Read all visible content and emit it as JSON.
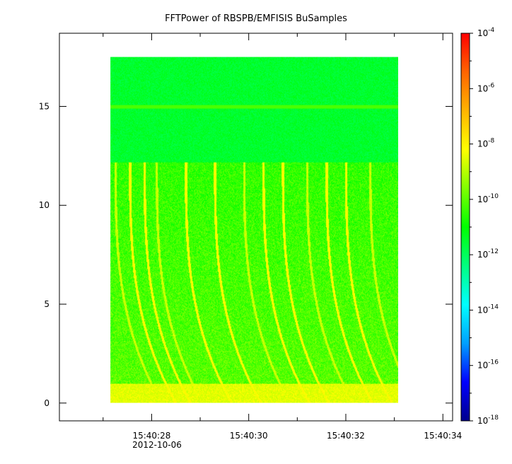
{
  "chart_data": {
    "type": "heatmap",
    "title": "FFTPower of RBSPB/EMFISIS  BuSamples",
    "xlabel": "",
    "ylabel": "",
    "x_axis": {
      "type": "time",
      "range": [
        "15:40:26.1",
        "15:40:34.2"
      ],
      "tick_labels": [
        "15:40:28",
        "15:40:30",
        "15:40:32",
        "15:40:34"
      ],
      "tick_seconds": [
        28,
        30,
        32,
        34
      ],
      "minor_tick_seconds": [
        27,
        29,
        31,
        33
      ],
      "date_label": "2012-10-06"
    },
    "y_axis": {
      "range": [
        -0.9,
        18.7
      ],
      "ticks": [
        0,
        5,
        10,
        15
      ],
      "tick_labels": [
        "0",
        "5",
        "10",
        "15"
      ]
    },
    "data_extent": {
      "x_seconds": [
        27.15,
        33.08
      ],
      "y": [
        0,
        17.5
      ]
    },
    "colorbar": {
      "scale": "log",
      "range_exponent": [
        -18,
        -4
      ],
      "tick_exponents": [
        -4,
        -6,
        -8,
        -10,
        -12,
        -14,
        -16,
        -18
      ],
      "tick_base": "10",
      "colormap": [
        "#00008c",
        "#0000ff",
        "#00a0ff",
        "#00ffff",
        "#00ff80",
        "#00ff00",
        "#80ff00",
        "#ffff00",
        "#ffb400",
        "#ff6400",
        "#ff0000"
      ]
    },
    "features": {
      "background_above_12_log_power": -11.5,
      "background_below_12_log_power": -10,
      "low_frequency_band": {
        "y_range": [
          0,
          1
        ],
        "log_power": -8.5
      },
      "horizontal_line_y": 15,
      "cutoff_y": 12.2,
      "chorus_elements_start_seconds": [
        27.25,
        27.55,
        27.85,
        28.1,
        28.7,
        29.3,
        29.9,
        30.3,
        30.7,
        31.2,
        31.6,
        32.0,
        32.5
      ]
    }
  }
}
